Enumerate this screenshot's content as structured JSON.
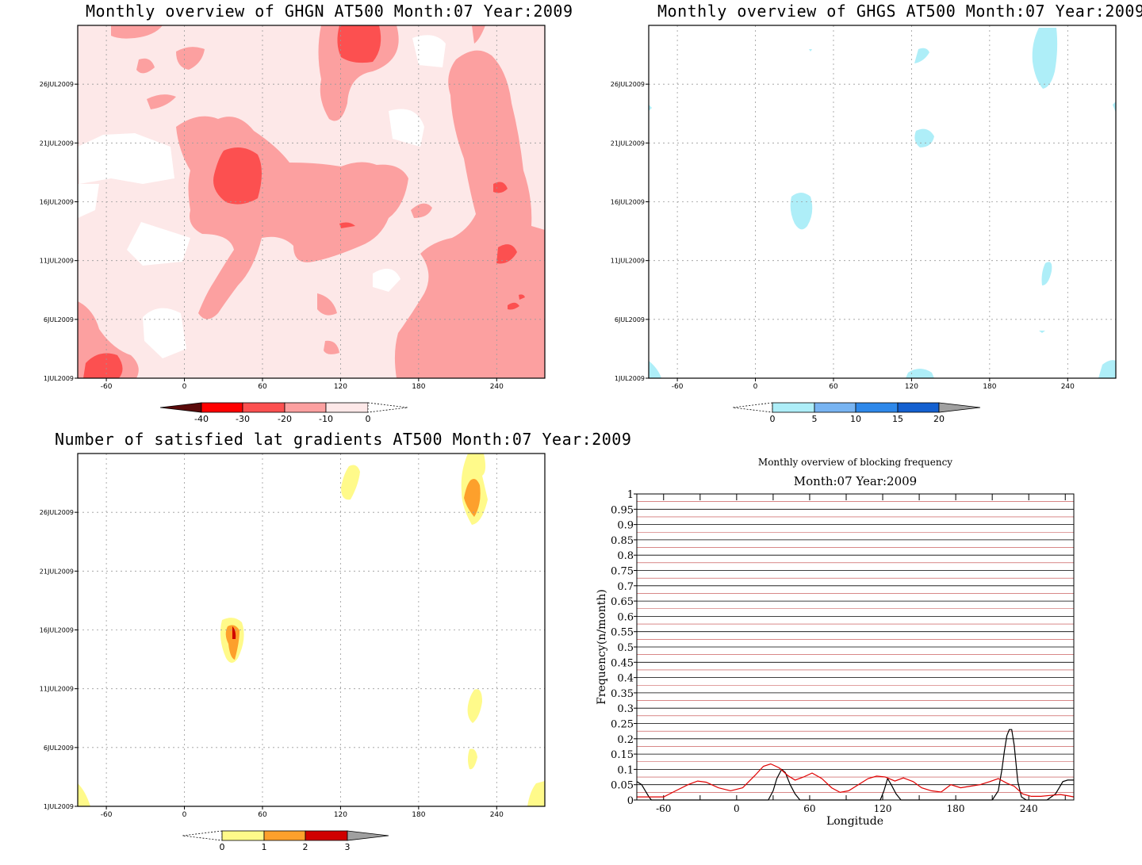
{
  "panels": {
    "ghgn": {
      "title": "Monthly overview of GHGN AT500 Month:07 Year:2009",
      "y_ticks": [
        "26JUL2009",
        "21JUL2009",
        "16JUL2009",
        "11JUL2009",
        "6JUL2009",
        "1JUL2009"
      ],
      "x_ticks": [
        "-60",
        "0",
        "60",
        "120",
        "180",
        "240"
      ],
      "colorbar_labels": [
        "-40",
        "-30",
        "-20",
        "-10",
        "0"
      ],
      "colors": [
        "#5a0a0a",
        "#ff0000",
        "#fc5050",
        "#fca0a0",
        "#fde8e8"
      ]
    },
    "ghgs": {
      "title": "Monthly overview of GHGS AT500 Month:07 Year:2009",
      "y_ticks": [
        "26JUL2009",
        "21JUL2009",
        "16JUL2009",
        "11JUL2009",
        "6JUL2009",
        "1JUL2009"
      ],
      "x_ticks": [
        "-60",
        "0",
        "60",
        "120",
        "180",
        "240"
      ],
      "colorbar_labels": [
        "0",
        "5",
        "10",
        "15",
        "20"
      ],
      "colors": [
        "#aeeef8",
        "#78b4f2",
        "#2e88ea",
        "#1460d0",
        "#a0a0a0"
      ]
    },
    "lat": {
      "title": "Number of satisfied lat gradients AT500 Month:07 Year:2009",
      "y_ticks": [
        "26JUL2009",
        "21JUL2009",
        "16JUL2009",
        "11JUL2009",
        "6JUL2009",
        "1JUL2009"
      ],
      "x_ticks": [
        "-60",
        "0",
        "60",
        "120",
        "180",
        "240"
      ],
      "colorbar_labels": [
        "0",
        "1",
        "2",
        "3"
      ],
      "colors": [
        "#fffa8a",
        "#fda02c",
        "#d00000",
        "#a0a0a0"
      ]
    },
    "freq": {
      "title": "Monthly overview of blocking frequency",
      "subtitle": "Month:07 Year:2009"
    }
  },
  "chart_data": [
    {
      "type": "heatmap",
      "title": "Monthly overview of GHGN AT500 Month:07 Year:2009",
      "x": {
        "ticks": [
          -60,
          0,
          60,
          120,
          180,
          240
        ],
        "range": [
          -82,
          277
        ]
      },
      "y": {
        "ticks": [
          "1JUL2009",
          "6JUL2009",
          "11JUL2009",
          "16JUL2009",
          "21JUL2009",
          "26JUL2009"
        ],
        "range_days": [
          1,
          31
        ]
      },
      "levels": [
        -40,
        -30,
        -20,
        -10,
        0
      ]
    },
    {
      "type": "heatmap",
      "title": "Monthly overview of GHGS AT500 Month:07 Year:2009",
      "x": {
        "ticks": [
          -60,
          0,
          60,
          120,
          180,
          240
        ],
        "range": [
          -82,
          277
        ]
      },
      "y": {
        "ticks": [
          "1JUL2009",
          "6JUL2009",
          "11JUL2009",
          "16JUL2009",
          "21JUL2009",
          "26JUL2009"
        ],
        "range_days": [
          1,
          31
        ]
      },
      "levels": [
        0,
        5,
        10,
        15,
        20
      ]
    },
    {
      "type": "heatmap",
      "title": "Number of satisfied lat gradients AT500 Month:07 Year:2009",
      "x": {
        "ticks": [
          -60,
          0,
          60,
          120,
          180,
          240
        ],
        "range": [
          -82,
          277
        ]
      },
      "y": {
        "ticks": [
          "1JUL2009",
          "6JUL2009",
          "11JUL2009",
          "16JUL2009",
          "21JUL2009",
          "26JUL2009"
        ],
        "range_days": [
          1,
          31
        ]
      },
      "levels": [
        0,
        1,
        2,
        3
      ]
    },
    {
      "type": "line",
      "title": "Monthly overview of blocking frequency",
      "subtitle": "Month:07 Year:2009",
      "xlabel": "Longitude",
      "ylabel": "Frequency(n/month)",
      "xlim": [
        -82,
        277
      ],
      "ylim": [
        0,
        1
      ],
      "x_ticks": [
        -60,
        0,
        60,
        120,
        180,
        240
      ],
      "y_ticks": [
        "0",
        "0.05",
        "0.1",
        "0.15",
        "0.2",
        "0.25",
        "0.3",
        "0.35",
        "0.4",
        "0.45",
        "0.5",
        "0.55",
        "0.6",
        "0.65",
        "0.7",
        "0.75",
        "0.8",
        "0.85",
        "0.9",
        "0.95",
        "1"
      ],
      "grid": true,
      "series": [
        {
          "color": "#000000",
          "x": [
            -82,
            -78,
            -75,
            -72,
            -70,
            -65,
            -55,
            -40,
            -20,
            0,
            20,
            26,
            30,
            33,
            37,
            40,
            44,
            48,
            52,
            55,
            60,
            75,
            90,
            105,
            118,
            121,
            124,
            127,
            131,
            135,
            140,
            150,
            170,
            190,
            210,
            215,
            218,
            220,
            222,
            224,
            226,
            228,
            231,
            234,
            238,
            245,
            255,
            262,
            265,
            268,
            272,
            277
          ],
          "values": [
            0.06,
            0.05,
            0.03,
            0.01,
            0.0,
            0.0,
            0.0,
            0.0,
            0.0,
            0.0,
            0.0,
            0.0,
            0.03,
            0.07,
            0.1,
            0.09,
            0.05,
            0.02,
            0.0,
            0.0,
            0.0,
            0.0,
            0.0,
            0.0,
            0.0,
            0.03,
            0.07,
            0.05,
            0.02,
            0.0,
            0.0,
            0.0,
            0.0,
            0.0,
            0.0,
            0.03,
            0.1,
            0.16,
            0.21,
            0.23,
            0.23,
            0.18,
            0.06,
            0.01,
            0.0,
            0.0,
            0.0,
            0.02,
            0.04,
            0.06,
            0.065,
            0.065
          ]
        },
        {
          "color": "#e00000",
          "x": [
            -82,
            -75,
            -68,
            -60,
            -50,
            -40,
            -32,
            -25,
            -15,
            -5,
            5,
            15,
            22,
            28,
            35,
            42,
            48,
            55,
            62,
            70,
            78,
            85,
            92,
            100,
            108,
            115,
            122,
            130,
            137,
            145,
            152,
            160,
            168,
            176,
            184,
            192,
            200,
            208,
            215,
            222,
            228,
            235,
            242,
            250,
            258,
            266,
            272,
            277
          ],
          "values": [
            0.01,
            0.01,
            0.01,
            0.01,
            0.03,
            0.05,
            0.062,
            0.058,
            0.04,
            0.03,
            0.04,
            0.08,
            0.11,
            0.118,
            0.105,
            0.08,
            0.065,
            0.075,
            0.088,
            0.07,
            0.04,
            0.025,
            0.03,
            0.05,
            0.07,
            0.078,
            0.075,
            0.062,
            0.072,
            0.06,
            0.04,
            0.03,
            0.026,
            0.05,
            0.04,
            0.045,
            0.05,
            0.06,
            0.07,
            0.055,
            0.045,
            0.02,
            0.012,
            0.012,
            0.015,
            0.018,
            0.014,
            0.01
          ]
        }
      ]
    }
  ]
}
